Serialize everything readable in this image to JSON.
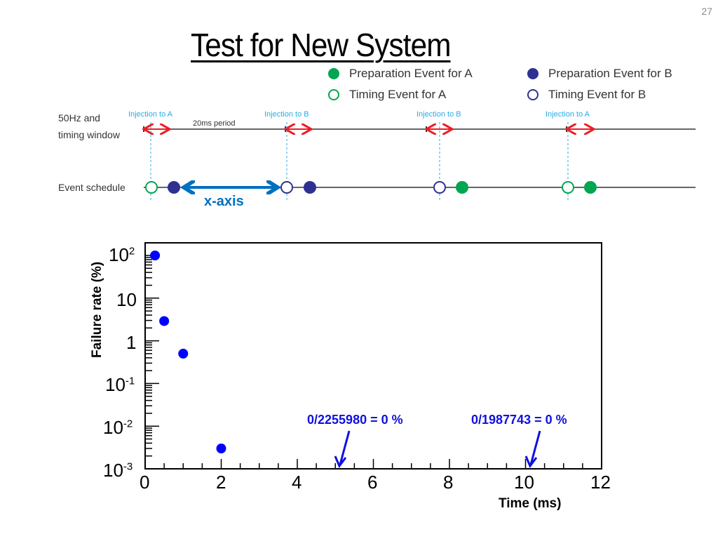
{
  "slide": {
    "page_number": "27",
    "title": "Test for New System"
  },
  "legend": [
    {
      "label": "Preparation Event for A",
      "style": "filled",
      "color": "#00a651"
    },
    {
      "label": "Preparation Event for B",
      "style": "filled",
      "color": "#2e3192"
    },
    {
      "label": "Timing Event for A",
      "style": "hollow",
      "color": "#00a651"
    },
    {
      "label": "Timing Event for B",
      "style": "hollow",
      "color": "#2e3192"
    }
  ],
  "diagram": {
    "row1_label_line1": "50Hz and",
    "row1_label_line2": "timing window",
    "row2_label": "Event schedule",
    "period_label": "20ms period",
    "injections": [
      "Injection to A",
      "Injection to B",
      "Injection to B",
      "Injection to A"
    ],
    "xaxis_label": "x-axis",
    "colors": {
      "injection": "#29abe2",
      "window_arrow": "#ed1c24",
      "xaxis_arrow": "#0070c0"
    }
  },
  "chart_data": {
    "type": "scatter",
    "title": "",
    "xlabel": "Time (ms)",
    "ylabel": "Failure rate (%)",
    "xlim": [
      0,
      12
    ],
    "ylim": [
      0.001,
      100
    ],
    "yscale": "log",
    "x_ticks": [
      "0",
      "2",
      "4",
      "6",
      "8",
      "10",
      "12"
    ],
    "y_ticks": [
      "10^-3",
      "10^-2",
      "10^-1",
      "1",
      "10",
      "10^2"
    ],
    "grid": false,
    "series": [
      {
        "name": "Failure rate",
        "color": "#0000ff",
        "x": [
          0.26,
          0.5,
          1.0,
          2.0
        ],
        "y": [
          100,
          2.9,
          0.5,
          0.003
        ]
      }
    ],
    "annotations": [
      {
        "text": "0/2255980 = 0 %",
        "x": 5.0,
        "y": 0.001
      },
      {
        "text": "0/1987743 = 0 %",
        "x": 10.0,
        "y": 0.001
      }
    ]
  }
}
